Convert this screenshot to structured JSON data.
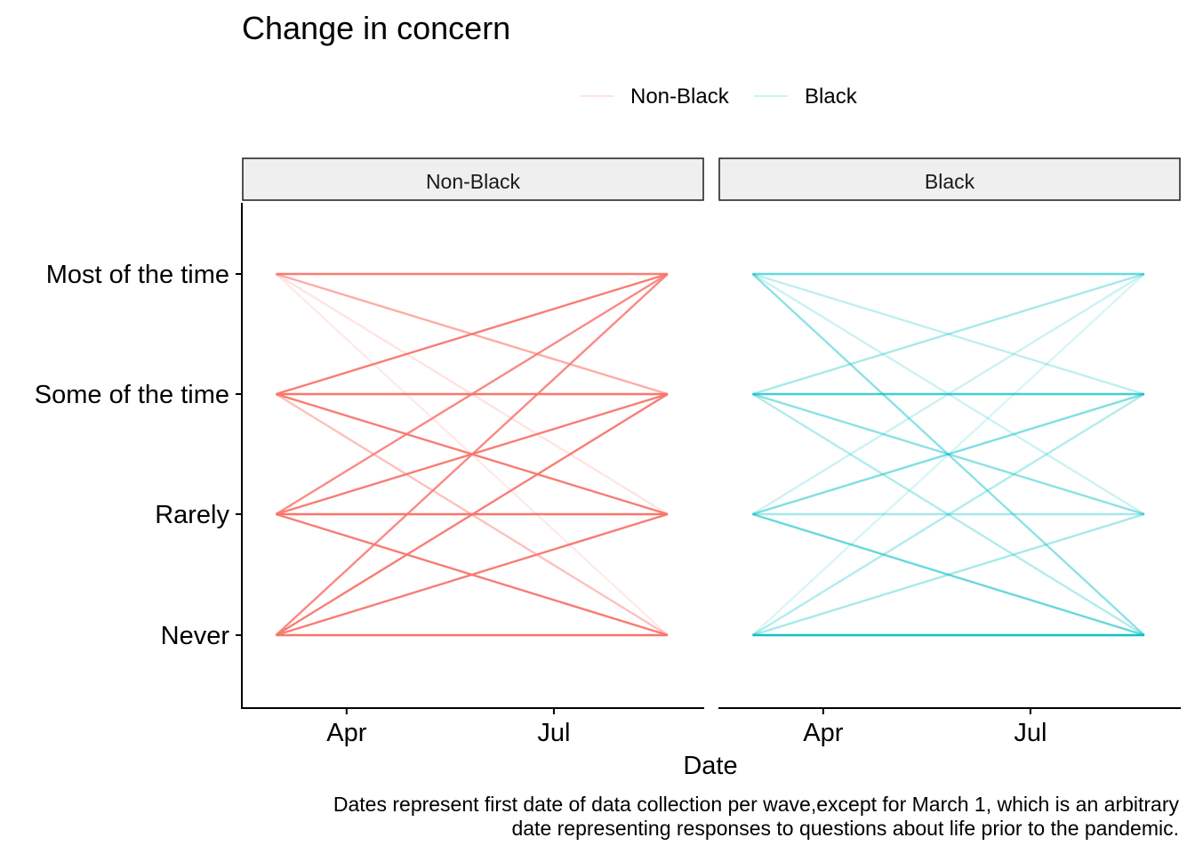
{
  "chart_data": {
    "type": "line",
    "title": "Change in concern",
    "xlabel": "Date",
    "ylabel": "",
    "caption_lines": [
      "Dates represent first date of data collection per wave,except for March 1, which is an arbitrary",
      "date representing responses to questions about life prior to the pandemic."
    ],
    "x_ticks": [
      "Apr",
      "Jul"
    ],
    "x_tick_dates": [
      "2020-04-01",
      "2020-07-01"
    ],
    "xlim": [
      "2020-02-15",
      "2020-09-05"
    ],
    "x": [
      "2020-03-01",
      "2020-08-20"
    ],
    "y_categories": [
      "Never",
      "Rarely",
      "Some of the time",
      "Most of the time"
    ],
    "legend": {
      "position": "top",
      "entries": [
        {
          "label": "Non-Black",
          "color": "#F8766D"
        },
        {
          "label": "Black",
          "color": "#00BFC4"
        }
      ]
    },
    "panels": [
      {
        "label": "Non-Black",
        "color": "#F8766D",
        "transitions": [
          {
            "from": "Never",
            "to": "Never",
            "opacity": 1.0
          },
          {
            "from": "Never",
            "to": "Rarely",
            "opacity": 0.95
          },
          {
            "from": "Never",
            "to": "Some of the time",
            "opacity": 0.95
          },
          {
            "from": "Never",
            "to": "Most of the time",
            "opacity": 0.85
          },
          {
            "from": "Rarely",
            "to": "Never",
            "opacity": 0.95
          },
          {
            "from": "Rarely",
            "to": "Rarely",
            "opacity": 1.0
          },
          {
            "from": "Rarely",
            "to": "Some of the time",
            "opacity": 0.95
          },
          {
            "from": "Rarely",
            "to": "Most of the time",
            "opacity": 0.85
          },
          {
            "from": "Some of the time",
            "to": "Never",
            "opacity": 0.45
          },
          {
            "from": "Some of the time",
            "to": "Rarely",
            "opacity": 0.95
          },
          {
            "from": "Some of the time",
            "to": "Some of the time",
            "opacity": 1.0
          },
          {
            "from": "Some of the time",
            "to": "Most of the time",
            "opacity": 0.95
          },
          {
            "from": "Most of the time",
            "to": "Never",
            "opacity": 0.15
          },
          {
            "from": "Most of the time",
            "to": "Rarely",
            "opacity": 0.2
          },
          {
            "from": "Most of the time",
            "to": "Some of the time",
            "opacity": 0.6
          },
          {
            "from": "Most of the time",
            "to": "Most of the time",
            "opacity": 0.95
          }
        ]
      },
      {
        "label": "Black",
        "color": "#00BFC4",
        "transitions": [
          {
            "from": "Never",
            "to": "Never",
            "opacity": 0.95
          },
          {
            "from": "Never",
            "to": "Rarely",
            "opacity": 0.35
          },
          {
            "from": "Never",
            "to": "Some of the time",
            "opacity": 0.3
          },
          {
            "from": "Never",
            "to": "Most of the time",
            "opacity": 0.15
          },
          {
            "from": "Rarely",
            "to": "Never",
            "opacity": 0.6
          },
          {
            "from": "Rarely",
            "to": "Rarely",
            "opacity": 0.35
          },
          {
            "from": "Rarely",
            "to": "Some of the time",
            "opacity": 0.5
          },
          {
            "from": "Rarely",
            "to": "Most of the time",
            "opacity": 0.2
          },
          {
            "from": "Some of the time",
            "to": "Never",
            "opacity": 0.3
          },
          {
            "from": "Some of the time",
            "to": "Rarely",
            "opacity": 0.45
          },
          {
            "from": "Some of the time",
            "to": "Some of the time",
            "opacity": 0.75
          },
          {
            "from": "Some of the time",
            "to": "Most of the time",
            "opacity": 0.35
          },
          {
            "from": "Most of the time",
            "to": "Never",
            "opacity": 0.45
          },
          {
            "from": "Most of the time",
            "to": "Rarely",
            "opacity": 0.2
          },
          {
            "from": "Most of the time",
            "to": "Some of the time",
            "opacity": 0.25
          },
          {
            "from": "Most of the time",
            "to": "Most of the time",
            "opacity": 0.6
          }
        ]
      }
    ]
  }
}
